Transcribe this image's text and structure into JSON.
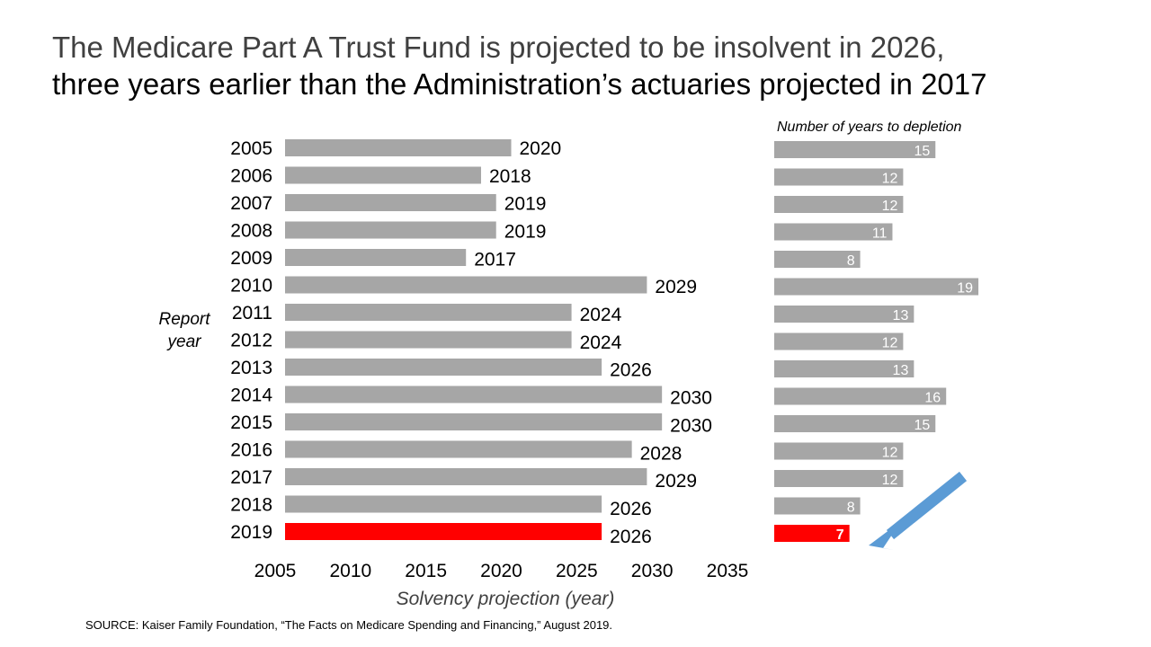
{
  "title": {
    "line1": "The Medicare Part A Trust Fund is projected to be insolvent in 2026,",
    "line2": "three years earlier than the Administration’s actuaries projected in 2017"
  },
  "source": "SOURCE: Kaiser Family Foundation, “The Facts on Medicare Spending and Financing,” August 2019.",
  "colors": {
    "bar": "#a6a6a6",
    "highlight": "#ff0000",
    "arrow": "#5b9bd5"
  },
  "chart_data": [
    {
      "type": "bar",
      "orientation": "horizontal",
      "title": "",
      "ylabel": "Report year",
      "xlabel": "Solvency projection (year)",
      "xlim": [
        2005,
        2035
      ],
      "xticks": [
        2005,
        2010,
        2015,
        2020,
        2025,
        2030,
        2035
      ],
      "categories": [
        "2005",
        "2006",
        "2007",
        "2008",
        "2009",
        "2010",
        "2011",
        "2012",
        "2013",
        "2014",
        "2015",
        "2016",
        "2017",
        "2018",
        "2019"
      ],
      "values": [
        2020,
        2018,
        2019,
        2019,
        2017,
        2029,
        2024,
        2024,
        2026,
        2030,
        2030,
        2028,
        2029,
        2026,
        2026
      ],
      "highlight_index": 14
    },
    {
      "type": "bar",
      "orientation": "horizontal",
      "title": "Number of years to depletion",
      "categories": [
        "2005",
        "2006",
        "2007",
        "2008",
        "2009",
        "2010",
        "2011",
        "2012",
        "2013",
        "2014",
        "2015",
        "2016",
        "2017",
        "2018",
        "2019"
      ],
      "values": [
        15,
        12,
        12,
        11,
        8,
        19,
        13,
        12,
        13,
        16,
        15,
        12,
        12,
        8,
        7
      ],
      "highlight_index": 14
    }
  ]
}
